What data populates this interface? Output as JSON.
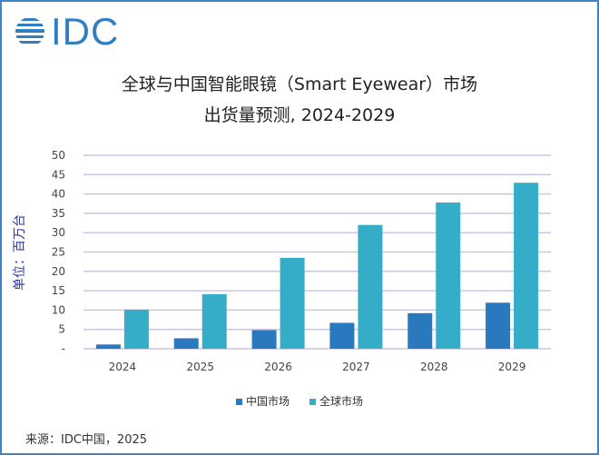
{
  "logo": {
    "text": "IDC"
  },
  "chart_data": {
    "type": "bar",
    "title": "全球与中国智能眼镜（Smart Eyewear）市场",
    "subtitle": "出货量预测, 2024-2029",
    "ylabel": "单位：百万台",
    "xlabel": "",
    "ylim": [
      0,
      50
    ],
    "yticks": [
      "-",
      "5",
      "10",
      "15",
      "20",
      "25",
      "30",
      "35",
      "40",
      "45",
      "50"
    ],
    "grid": true,
    "legend_position": "bottom",
    "categories": [
      "2024",
      "2025",
      "2026",
      "2027",
      "2028",
      "2029"
    ],
    "series": [
      {
        "name": "中国市场",
        "color": "#2a78bd",
        "values": [
          1.1,
          2.7,
          4.8,
          6.7,
          9.2,
          11.9
        ]
      },
      {
        "name": "全球市场",
        "color": "#36adc8",
        "values": [
          10.1,
          14.1,
          23.5,
          32.0,
          37.8,
          42.9
        ]
      }
    ]
  },
  "source": "来源：IDC中国，2025"
}
